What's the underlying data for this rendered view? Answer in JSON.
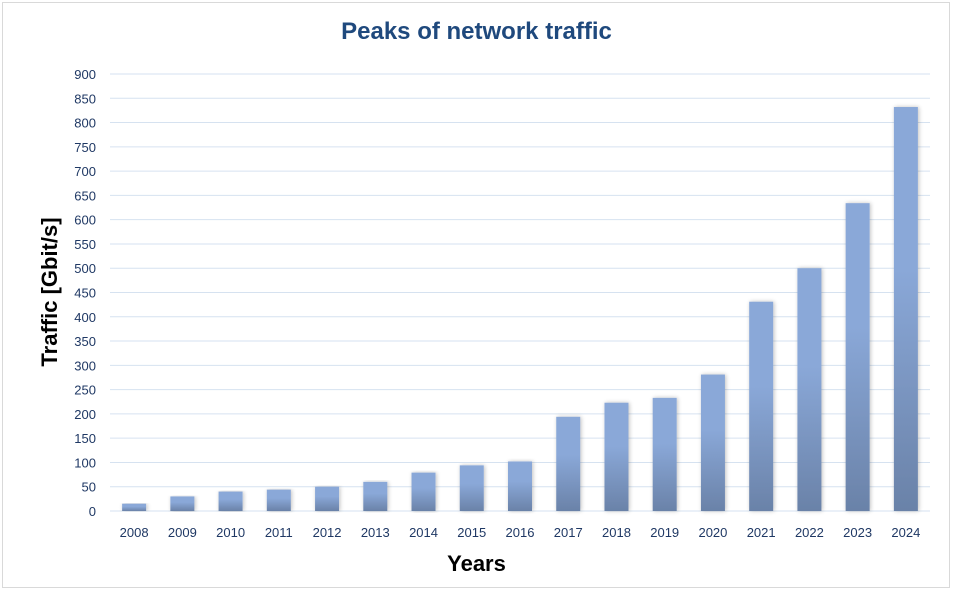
{
  "chart_data": {
    "type": "bar",
    "title": "Peaks of network traffic",
    "xlabel": "Years",
    "ylabel": "Traffic [Gbit/s]",
    "categories": [
      "2008",
      "2009",
      "2010",
      "2011",
      "2012",
      "2013",
      "2014",
      "2015",
      "2016",
      "2017",
      "2018",
      "2019",
      "2020",
      "2021",
      "2022",
      "2023",
      "2024"
    ],
    "values": [
      15,
      30,
      40,
      44,
      50,
      60,
      79,
      94,
      102,
      194,
      223,
      233,
      281,
      431,
      500,
      634,
      832
    ],
    "ylim": [
      0,
      900
    ],
    "yticks": [
      0,
      50,
      100,
      150,
      200,
      250,
      300,
      350,
      400,
      450,
      500,
      550,
      600,
      650,
      700,
      750,
      800,
      850,
      900
    ],
    "grid": true,
    "legend": "none",
    "colors": {
      "bar_top": "#8aa8d8",
      "bar_bottom": "#6a82a8",
      "grid": "#d6e2f0",
      "title": "#1f497d",
      "ticks": "#1f3864"
    }
  }
}
